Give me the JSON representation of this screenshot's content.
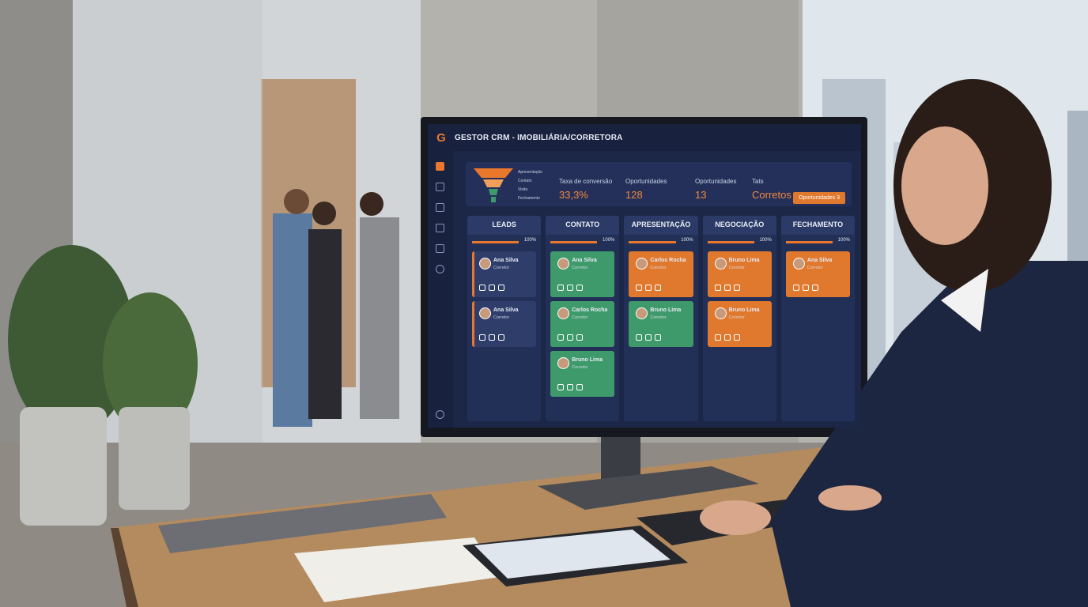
{
  "app": {
    "logo": "G",
    "title": "GESTOR CRM - IMOBILIÁRIA/CORRETORA"
  },
  "funnel": {
    "stages": [
      "Apresentação",
      "Contato",
      "Visita",
      "Fechamento"
    ]
  },
  "stats": [
    {
      "label": "Taxa de conversão",
      "value": "33,3%"
    },
    {
      "label": "Oportunidades",
      "value": "128"
    },
    {
      "label": "Oportunidades",
      "value": "13"
    },
    {
      "label": "Tats",
      "value": "Corretos"
    }
  ],
  "button": "Oportunidades 3",
  "columns": [
    {
      "title": "LEADS",
      "progress": {
        "value": 100,
        "label": "100%"
      },
      "cards": [
        {
          "name": "Ana Silva",
          "role": "Corretor",
          "color": "#2f3d6b"
        },
        {
          "name": "Ana Silva",
          "role": "Corretor",
          "color": "#2f3d6b"
        }
      ]
    },
    {
      "title": "CONTATO",
      "progress": {
        "value": 100,
        "label": "100%"
      },
      "cards": [
        {
          "name": "Ana Silva",
          "role": "Corretor",
          "color": "#3e9a6a"
        },
        {
          "name": "Carlos Rocha",
          "role": "Corretor",
          "color": "#3e9a6a"
        },
        {
          "name": "Bruno Lima",
          "role": "Corretor",
          "color": "#3e9a6a"
        }
      ]
    },
    {
      "title": "APRESENTAÇÃO",
      "progress": {
        "value": 100,
        "label": "100%"
      },
      "cards": [
        {
          "name": "Carlos Rocha",
          "role": "Corretor",
          "color": "#e0782e"
        },
        {
          "name": "Bruno Lima",
          "role": "Corretor",
          "color": "#3e9a6a"
        }
      ]
    },
    {
      "title": "NEGOCIAÇÃO",
      "progress": {
        "value": 100,
        "label": "100%"
      },
      "cards": [
        {
          "name": "Bruno Lima",
          "role": "Corretor",
          "color": "#e0782e"
        },
        {
          "name": "Bruno Lima",
          "role": "Corretor",
          "color": "#e0782e"
        }
      ]
    },
    {
      "title": "FECHAMENTO",
      "progress": {
        "value": 100,
        "label": "100%"
      },
      "cards": [
        {
          "name": "Ana Silva",
          "role": "Corretor",
          "color": "#e0782e"
        }
      ]
    }
  ]
}
